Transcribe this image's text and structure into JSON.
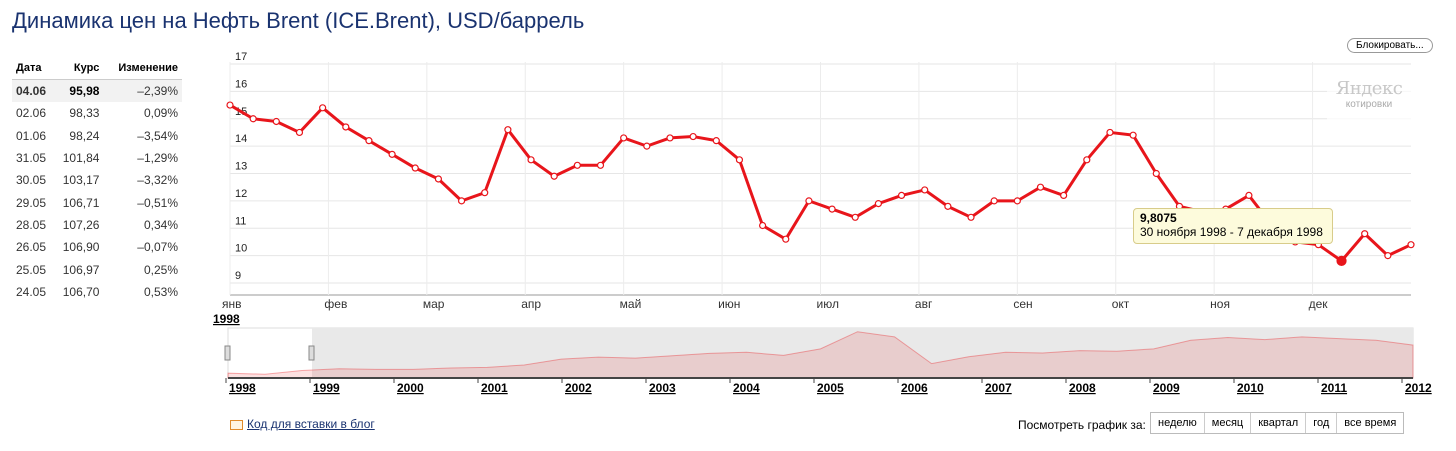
{
  "title": "Динамика цен на Нефть Brent (ICE.Brent), USD/баррель",
  "block_button": "Блокировать...",
  "table": {
    "headers": [
      "Дата",
      "Курс",
      "Изменение"
    ],
    "rows": [
      {
        "date": "04.06",
        "rate": "95,98",
        "change": "–2,39%"
      },
      {
        "date": "02.06",
        "rate": "98,33",
        "change": "0,09%"
      },
      {
        "date": "01.06",
        "rate": "98,24",
        "change": "–3,54%"
      },
      {
        "date": "31.05",
        "rate": "101,84",
        "change": "–1,29%"
      },
      {
        "date": "30.05",
        "rate": "103,17",
        "change": "–3,32%"
      },
      {
        "date": "29.05",
        "rate": "106,71",
        "change": "–0,51%"
      },
      {
        "date": "28.05",
        "rate": "107,26",
        "change": "0,34%"
      },
      {
        "date": "26.05",
        "rate": "106,90",
        "change": "–0,07%"
      },
      {
        "date": "25.05",
        "rate": "106,97",
        "change": "0,25%"
      },
      {
        "date": "24.05",
        "rate": "106,70",
        "change": "0,53%"
      }
    ]
  },
  "logo": {
    "brand": "Яндекс",
    "sub": "котировки"
  },
  "tooltip": {
    "value": "9,8075",
    "period": "30 ноября 1998 - 7 декабря 1998"
  },
  "embed_link": "Код для вставки в блог",
  "range_label": "Посмотреть график за:",
  "range_buttons": [
    "неделю",
    "месяц",
    "квартал",
    "год",
    "все время"
  ],
  "colors": {
    "line": "#e8151b",
    "title": "#1a3370",
    "navigator": "#e9e9e9"
  },
  "chart_data": {
    "type": "line",
    "title": "",
    "xlabel": "",
    "ylabel": "",
    "ylim": [
      9,
      17
    ],
    "y_ticks": [
      9,
      10,
      11,
      12,
      13,
      14,
      15,
      16,
      17
    ],
    "x_month_labels": [
      "янв",
      "фев",
      "мар",
      "апр",
      "май",
      "июн",
      "июл",
      "авг",
      "сен",
      "окт",
      "ноя",
      "дек"
    ],
    "x_year_label": "1998",
    "grid": true,
    "series": [
      {
        "values": [
          15.5,
          15.0,
          14.9,
          14.5,
          15.4,
          14.7,
          14.2,
          13.7,
          13.2,
          12.8,
          12.0,
          12.3,
          14.6,
          13.5,
          12.9,
          13.3,
          13.3,
          14.3,
          14.0,
          14.3,
          14.35,
          14.2,
          13.5,
          11.1,
          10.6,
          12.0,
          11.7,
          11.4,
          11.9,
          12.2,
          12.4,
          11.8,
          11.4,
          12.0,
          12.0,
          12.5,
          12.2,
          13.5,
          14.5,
          14.4,
          13.0,
          11.8,
          11.6,
          11.7,
          12.2,
          11.1,
          10.5,
          10.4,
          9.8075,
          10.8,
          10.0,
          10.4
        ]
      }
    ],
    "highlight_index": 48,
    "navigator": {
      "years": [
        "1998",
        "1999",
        "2000",
        "2001",
        "2002",
        "2003",
        "2004",
        "2005",
        "2006",
        "2007",
        "2008",
        "2009",
        "2010",
        "2011",
        "2012"
      ],
      "values": [
        14,
        11,
        22,
        27,
        25,
        25,
        29,
        31,
        38,
        55,
        61,
        58,
        65,
        72,
        75,
        66,
        85,
        135,
        120,
        42,
        62,
        75,
        73,
        80,
        78,
        85,
        110,
        118,
        112,
        120,
        115,
        110,
        96
      ]
    }
  }
}
